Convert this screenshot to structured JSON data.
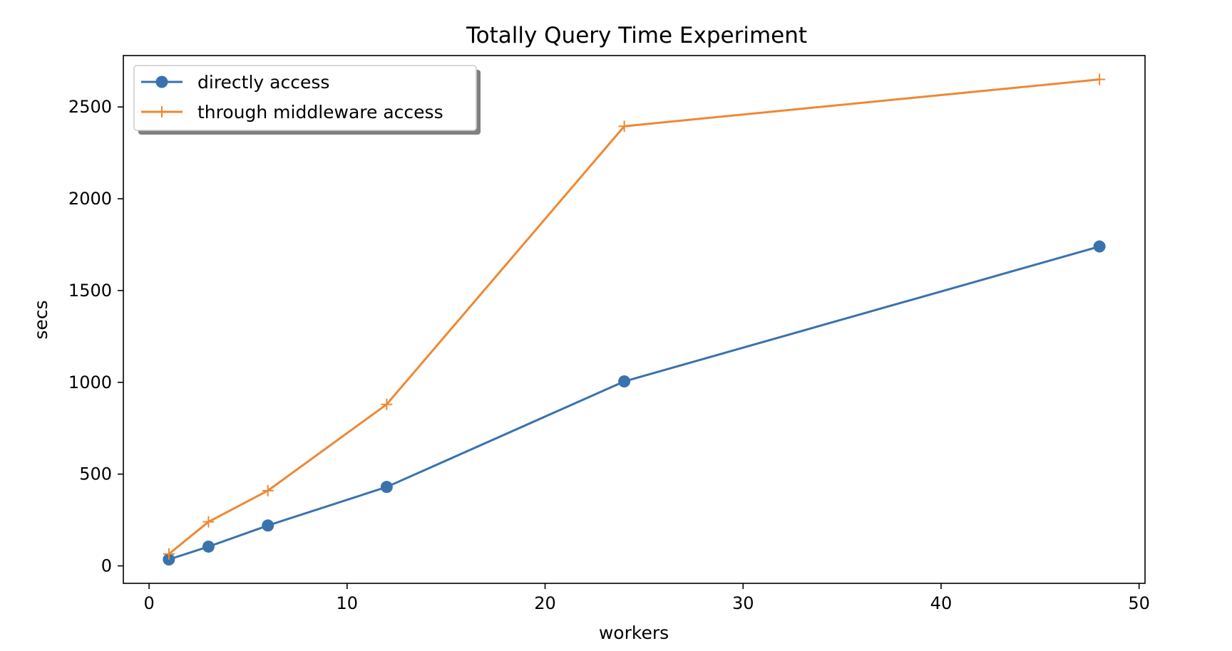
{
  "chart_data": {
    "type": "line",
    "title": "Totally Query Time Experiment",
    "xlabel": "workers",
    "ylabel": "secs",
    "xlim": [
      -1.3,
      50.3
    ],
    "ylim": [
      -95,
      2780
    ],
    "xticks": [
      0,
      10,
      20,
      30,
      40,
      50
    ],
    "yticks": [
      0,
      500,
      1000,
      1500,
      2000,
      2500
    ],
    "grid": false,
    "legend_position": "top-left",
    "x": [
      1,
      3,
      6,
      12,
      24,
      48
    ],
    "series": [
      {
        "name": "directly access",
        "color": "#3a72ad",
        "marker": "circle",
        "values": [
          35,
          105,
          220,
          430,
          1005,
          1740
        ]
      },
      {
        "name": "through middleware access",
        "color": "#ee8833",
        "marker": "plus",
        "values": [
          65,
          240,
          410,
          880,
          2395,
          2650
        ]
      }
    ]
  }
}
